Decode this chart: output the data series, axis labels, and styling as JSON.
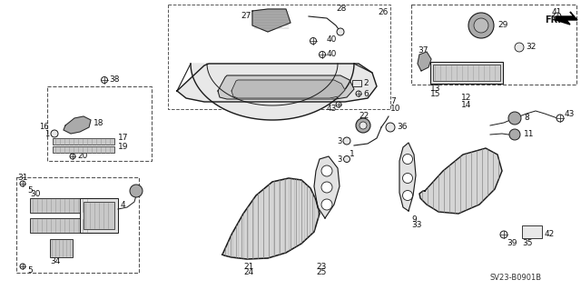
{
  "bg_color": "#ffffff",
  "diagram_code": "SV23-B0901B",
  "fr_label": "FR.",
  "line_color": "#1a1a1a",
  "dashed_line_color": "#555555",
  "gray_fill": "#d8d8d8",
  "light_gray": "#e8e8e8",
  "dark_gray": "#aaaaaa"
}
